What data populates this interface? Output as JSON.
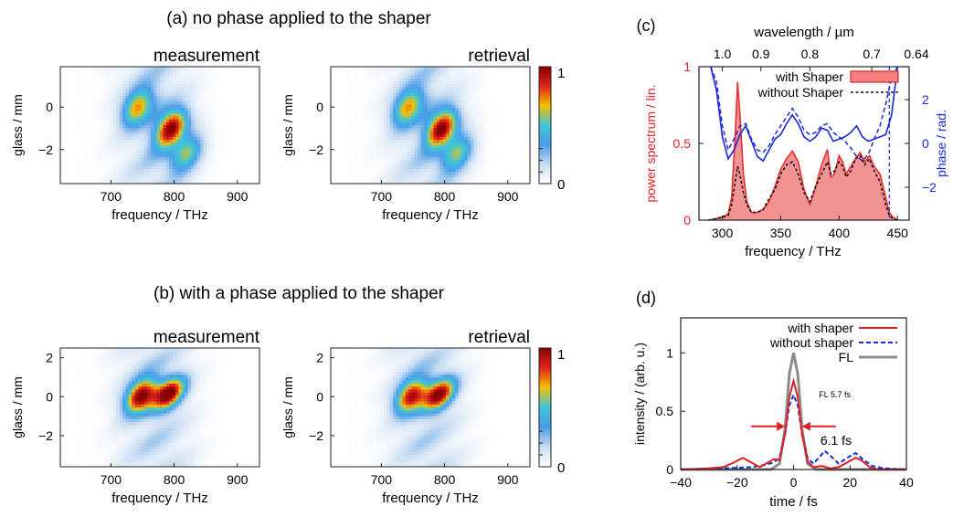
{
  "figure": {
    "panel_a_title": "(a) no phase applied to the shaper",
    "panel_b_title": "(b) with a phase applied to the shaper",
    "panel_c_label": "(c)",
    "panel_d_label": "(d)"
  },
  "colormap": {
    "stops": [
      "#ffffff",
      "#c8dcf2",
      "#4a9ee8",
      "#3ec6d8",
      "#f5c000",
      "#e0241c",
      "#8a0000"
    ],
    "ticks": [
      "1",
      "0"
    ]
  },
  "chart_data": [
    {
      "type": "heatmap",
      "id": "a-measurement",
      "title": "measurement",
      "xlabel": "frequency / THz",
      "ylabel": "glass / mm",
      "xlim": [
        620,
        935
      ],
      "ylim": [
        -3.6,
        1.9
      ],
      "xticks": [
        "700",
        "800",
        "900"
      ],
      "yticks": [
        "0",
        "−2"
      ],
      "blobs": [
        {
          "x": 742,
          "y": 0.0,
          "amp": 0.65
        },
        {
          "x": 795,
          "y": -1.0,
          "amp": 0.95
        },
        {
          "x": 820,
          "y": -2.2,
          "amp": 0.55
        }
      ]
    },
    {
      "type": "heatmap",
      "id": "a-retrieval",
      "title": "retrieval",
      "xlabel": "frequency / THz",
      "ylabel": "glass / mm",
      "xlim": [
        620,
        935
      ],
      "ylim": [
        -3.6,
        1.9
      ],
      "xticks": [
        "700",
        "800",
        "900"
      ],
      "yticks": [
        "0",
        "−2"
      ],
      "blobs": [
        {
          "x": 742,
          "y": 0.0,
          "amp": 0.65
        },
        {
          "x": 795,
          "y": -1.0,
          "amp": 0.95
        },
        {
          "x": 820,
          "y": -2.2,
          "amp": 0.55
        }
      ]
    },
    {
      "type": "heatmap",
      "id": "b-measurement",
      "title": "measurement",
      "xlabel": "frequency / THz",
      "ylabel": "glass / mm",
      "xlim": [
        620,
        935
      ],
      "ylim": [
        -3.6,
        2.5
      ],
      "xticks": [
        "700",
        "800",
        "900"
      ],
      "yticks": [
        "2",
        "0",
        "−2"
      ],
      "blobs": [
        {
          "x": 747,
          "y": 0.05,
          "amp": 0.95
        },
        {
          "x": 792,
          "y": 0.15,
          "amp": 0.9
        }
      ]
    },
    {
      "type": "heatmap",
      "id": "b-retrieval",
      "title": "retrieval",
      "xlabel": "frequency / THz",
      "ylabel": "glass / mm",
      "xlim": [
        620,
        935
      ],
      "ylim": [
        -3.6,
        2.5
      ],
      "xticks": [
        "700",
        "800",
        "900"
      ],
      "yticks": [
        "2",
        "0",
        "−2"
      ],
      "blobs": [
        {
          "x": 747,
          "y": 0.05,
          "amp": 0.85
        },
        {
          "x": 792,
          "y": 0.1,
          "amp": 0.85
        }
      ]
    },
    {
      "type": "line",
      "id": "c-spectrum",
      "xlabel": "frequency / THz",
      "x2label": "wavelength / µm",
      "ylabel": "power spectrum / lin.",
      "y2label": "phase / rad.",
      "xlim": [
        280,
        460
      ],
      "ylim": [
        0,
        1
      ],
      "y2lim": [
        -3.5,
        3.5
      ],
      "xticks": [
        "300",
        "350",
        "400",
        "450"
      ],
      "yticks": [
        "0",
        "0.5",
        "1"
      ],
      "y2ticks": [
        "2",
        "0",
        "−2"
      ],
      "x2ticks": [
        {
          "label": "1.0",
          "freq": 300
        },
        {
          "label": "0.9",
          "freq": 333
        },
        {
          "label": "0.8",
          "freq": 375
        },
        {
          "label": "0.7",
          "freq": 428
        },
        {
          "label": "0.64",
          "freq": 468
        }
      ],
      "series": [
        {
          "name": "with Shaper",
          "style": "area",
          "color": "#e83030",
          "x": [
            288,
            295,
            300,
            305,
            308,
            311,
            313,
            315,
            318,
            321,
            325,
            330,
            335,
            340,
            345,
            350,
            355,
            360,
            365,
            370,
            375,
            380,
            385,
            390,
            393,
            396,
            400,
            403,
            406,
            410,
            414,
            418,
            422,
            426,
            430,
            435,
            440,
            443,
            446,
            450
          ],
          "y": [
            0.0,
            0.01,
            0.02,
            0.04,
            0.15,
            0.55,
            0.9,
            0.7,
            0.3,
            0.12,
            0.05,
            0.05,
            0.07,
            0.12,
            0.22,
            0.33,
            0.4,
            0.45,
            0.38,
            0.2,
            0.1,
            0.22,
            0.36,
            0.46,
            0.28,
            0.3,
            0.42,
            0.38,
            0.3,
            0.35,
            0.4,
            0.44,
            0.38,
            0.42,
            0.35,
            0.3,
            0.15,
            0.05,
            0.02,
            0.0
          ]
        },
        {
          "name": "without Shaper",
          "style": "dotted",
          "color": "#111111",
          "x": [
            288,
            295,
            300,
            305,
            308,
            311,
            313,
            315,
            318,
            321,
            325,
            330,
            335,
            340,
            345,
            350,
            355,
            360,
            365,
            370,
            375,
            380,
            385,
            390,
            393,
            396,
            400,
            403,
            406,
            410,
            414,
            418,
            422,
            426,
            430,
            435,
            440,
            443,
            446,
            450
          ],
          "y": [
            0.0,
            0.01,
            0.02,
            0.03,
            0.1,
            0.25,
            0.35,
            0.3,
            0.18,
            0.1,
            0.05,
            0.05,
            0.07,
            0.14,
            0.2,
            0.3,
            0.36,
            0.38,
            0.3,
            0.18,
            0.12,
            0.22,
            0.3,
            0.38,
            0.3,
            0.32,
            0.38,
            0.35,
            0.28,
            0.32,
            0.4,
            0.42,
            0.36,
            0.4,
            0.32,
            0.25,
            0.1,
            0.03,
            0.01,
            0.0
          ]
        },
        {
          "name": "phase with Shaper",
          "style": "solid",
          "color": "#1a2ad8",
          "axis": "y2",
          "x": [
            290,
            295,
            300,
            305,
            310,
            315,
            320,
            325,
            330,
            335,
            340,
            345,
            350,
            355,
            360,
            365,
            370,
            375,
            380,
            385,
            390,
            395,
            400,
            405,
            410,
            415,
            420,
            425,
            430,
            435,
            440,
            445,
            450
          ],
          "y": [
            3.5,
            2.4,
            0.3,
            -0.7,
            -0.3,
            0.4,
            0.8,
            0.1,
            -0.6,
            -0.8,
            -0.3,
            0.2,
            0.4,
            0.9,
            1.3,
            0.9,
            0.3,
            0.1,
            0.3,
            0.7,
            0.6,
            0.1,
            0.2,
            0.3,
            0.5,
            0.8,
            0.3,
            0.1,
            0.2,
            0.3,
            0.4,
            1.3,
            3.5
          ]
        },
        {
          "name": "phase without Shaper",
          "style": "dashed",
          "color": "#1a2ad8",
          "axis": "y2",
          "x": [
            290,
            295,
            300,
            305,
            310,
            315,
            320,
            325,
            330,
            335,
            340,
            345,
            350,
            355,
            360,
            365,
            370,
            375,
            380,
            385,
            390,
            395,
            400,
            405,
            410,
            415,
            420,
            425,
            430,
            435,
            440,
            445,
            450
          ],
          "y": [
            3.5,
            2.8,
            0.8,
            -0.3,
            0.2,
            0.8,
            0.9,
            0.2,
            -0.3,
            -0.4,
            -0.1,
            0.4,
            0.8,
            1.2,
            1.6,
            1.2,
            0.6,
            0.4,
            0.5,
            0.8,
            0.9,
            0.5,
            0.3,
            0.1,
            -0.2,
            -0.6,
            -0.8,
            -0.5,
            0.2,
            0.8,
            1.8,
            3.0,
            3.5
          ]
        }
      ],
      "legend": [
        "with Shaper",
        "without Shaper"
      ],
      "legend_position": "top-right"
    },
    {
      "type": "line",
      "id": "d-pulse",
      "xlabel": "time / fs",
      "ylabel": "intensity / (arb. u.)",
      "xlim": [
        -40,
        40
      ],
      "ylim": [
        0,
        1.3
      ],
      "xticks": [
        "−40",
        "−20",
        "0",
        "20",
        "40"
      ],
      "yticks": [
        "0",
        "0.5",
        "1"
      ],
      "series": [
        {
          "name": "with shaper",
          "style": "solid",
          "color": "#e02020",
          "x": [
            -40,
            -30,
            -25,
            -22,
            -18,
            -15,
            -12,
            -9,
            -7,
            -5,
            -3,
            -1.5,
            0,
            1.5,
            3,
            5,
            7,
            10,
            13,
            16,
            19,
            22,
            24,
            27,
            30,
            40
          ],
          "y": [
            0,
            0.01,
            0.02,
            0.05,
            0.1,
            0.06,
            0.02,
            0.06,
            0.09,
            0.08,
            0.3,
            0.62,
            0.76,
            0.62,
            0.3,
            0.07,
            0.02,
            0.03,
            0.01,
            0.02,
            0.06,
            0.1,
            0.08,
            0.02,
            0,
            0
          ]
        },
        {
          "name": "without shaper",
          "style": "dashed",
          "color": "#1030e0",
          "x": [
            -40,
            -25,
            -15,
            -10,
            -7,
            -5,
            -3,
            -1.5,
            0,
            1.5,
            3,
            5,
            7,
            9,
            11,
            13,
            16,
            19,
            22,
            25,
            28,
            32,
            40
          ],
          "y": [
            0,
            0.01,
            0.02,
            0.04,
            0.06,
            0.1,
            0.3,
            0.55,
            0.64,
            0.55,
            0.3,
            0.1,
            0.05,
            0.1,
            0.16,
            0.12,
            0.05,
            0.1,
            0.14,
            0.08,
            0.03,
            0.01,
            0
          ]
        },
        {
          "name": "FL",
          "style": "solid",
          "color": "#8c8c8c",
          "x": [
            -40,
            -8,
            -5,
            -3,
            -1.5,
            0,
            1.5,
            3,
            5,
            8,
            40
          ],
          "y": [
            0,
            0,
            0.05,
            0.35,
            0.82,
            1.0,
            0.82,
            0.35,
            0.05,
            0,
            0
          ]
        }
      ],
      "legend": [
        "with shaper",
        "without shaper",
        "FL"
      ],
      "legend_position": "top-right",
      "annotations": {
        "fl_width": "FL 5.7 fs",
        "fwhm": "6.1 fs"
      }
    }
  ]
}
